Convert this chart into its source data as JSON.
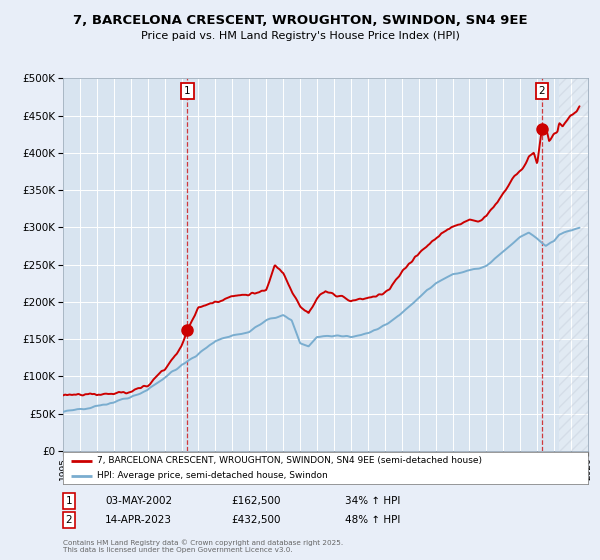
{
  "title_line1": "7, BARCELONA CRESCENT, WROUGHTON, SWINDON, SN4 9EE",
  "title_line2": "Price paid vs. HM Land Registry's House Price Index (HPI)",
  "ytick_values": [
    0,
    50000,
    100000,
    150000,
    200000,
    250000,
    300000,
    350000,
    400000,
    450000,
    500000
  ],
  "ytick_labels": [
    "£0",
    "£50K",
    "£100K",
    "£150K",
    "£200K",
    "£250K",
    "£300K",
    "£350K",
    "£400K",
    "£450K",
    "£500K"
  ],
  "xlim": [
    1995,
    2026
  ],
  "ylim": [
    0,
    500000
  ],
  "bg_color": "#e8eef8",
  "plot_bg": "#d8e4f0",
  "grid_color": "#ffffff",
  "red_color": "#cc0000",
  "hpi_line_color": "#7aadcf",
  "sale1_x": 2002.35,
  "sale1_y": 162500,
  "sale2_x": 2023.28,
  "sale2_y": 432500,
  "legend_entry1": "7, BARCELONA CRESCENT, WROUGHTON, SWINDON, SN4 9EE (semi-detached house)",
  "legend_entry2": "HPI: Average price, semi-detached house, Swindon",
  "annotation1_label": "1",
  "annotation1_date": "03-MAY-2002",
  "annotation1_price": "£162,500",
  "annotation1_pct": "34% ↑ HPI",
  "annotation2_label": "2",
  "annotation2_date": "14-APR-2023",
  "annotation2_price": "£432,500",
  "annotation2_pct": "48% ↑ HPI",
  "footer": "Contains HM Land Registry data © Crown copyright and database right 2025.\nThis data is licensed under the Open Government Licence v3.0.",
  "future_start": 2024.3
}
